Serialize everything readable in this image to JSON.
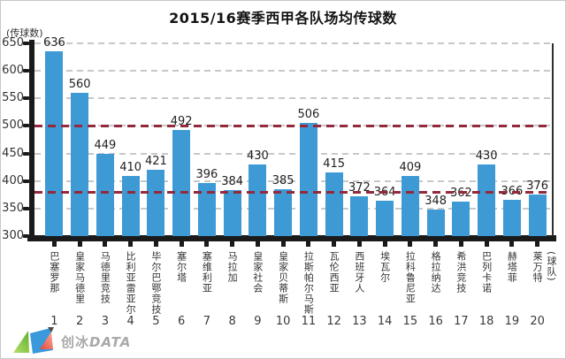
{
  "title": "2015/16赛季西甲各队场均传球数",
  "y_axis_unit": "(传球数)",
  "x_axis_unit": "(球队)",
  "colors": {
    "bar": "#3E9AD5",
    "reference_line": "#93293A",
    "gridline": "#C8C8C8",
    "axis": "#1A1A1A",
    "label_text": "#333333"
  },
  "chart_data": {
    "type": "bar",
    "title": "2015/16赛季西甲各队场均传球数",
    "ylabel": "(传球数)",
    "xlabel": "(球队)",
    "ylim": [
      300,
      650
    ],
    "yticks": [
      300,
      350,
      400,
      450,
      500,
      550,
      600,
      650
    ],
    "grid": "dashed-horizontal",
    "reference_lines": [
      500,
      380
    ],
    "categories": [
      "巴塞罗那",
      "皇家马德里",
      "马德里竞技",
      "比利亚雷亚尔",
      "毕尔巴鄂竞技",
      "塞尔塔",
      "塞维利亚",
      "马拉加",
      "皇家社会",
      "皇家贝蒂斯",
      "拉斯帕尔马斯",
      "瓦伦西亚",
      "西班牙人",
      "埃瓦尔",
      "拉科鲁尼亚",
      "格拉纳达",
      "希洪竞技",
      "巴列卡诺",
      "赫塔菲",
      "莱万特"
    ],
    "xtick_labels": [
      "1",
      "2",
      "3",
      "4",
      "5",
      "6",
      "7",
      "8",
      "9",
      "10",
      "11",
      "12",
      "13",
      "14",
      "15",
      "16",
      "17",
      "18",
      "19",
      "20"
    ],
    "values": [
      636,
      560,
      449,
      410,
      421,
      492,
      396,
      384,
      430,
      385,
      506,
      415,
      372,
      364,
      409,
      348,
      362,
      430,
      366,
      376
    ]
  },
  "footer": {
    "logo_text_cn": "创冰",
    "logo_text_en": "DATA"
  }
}
